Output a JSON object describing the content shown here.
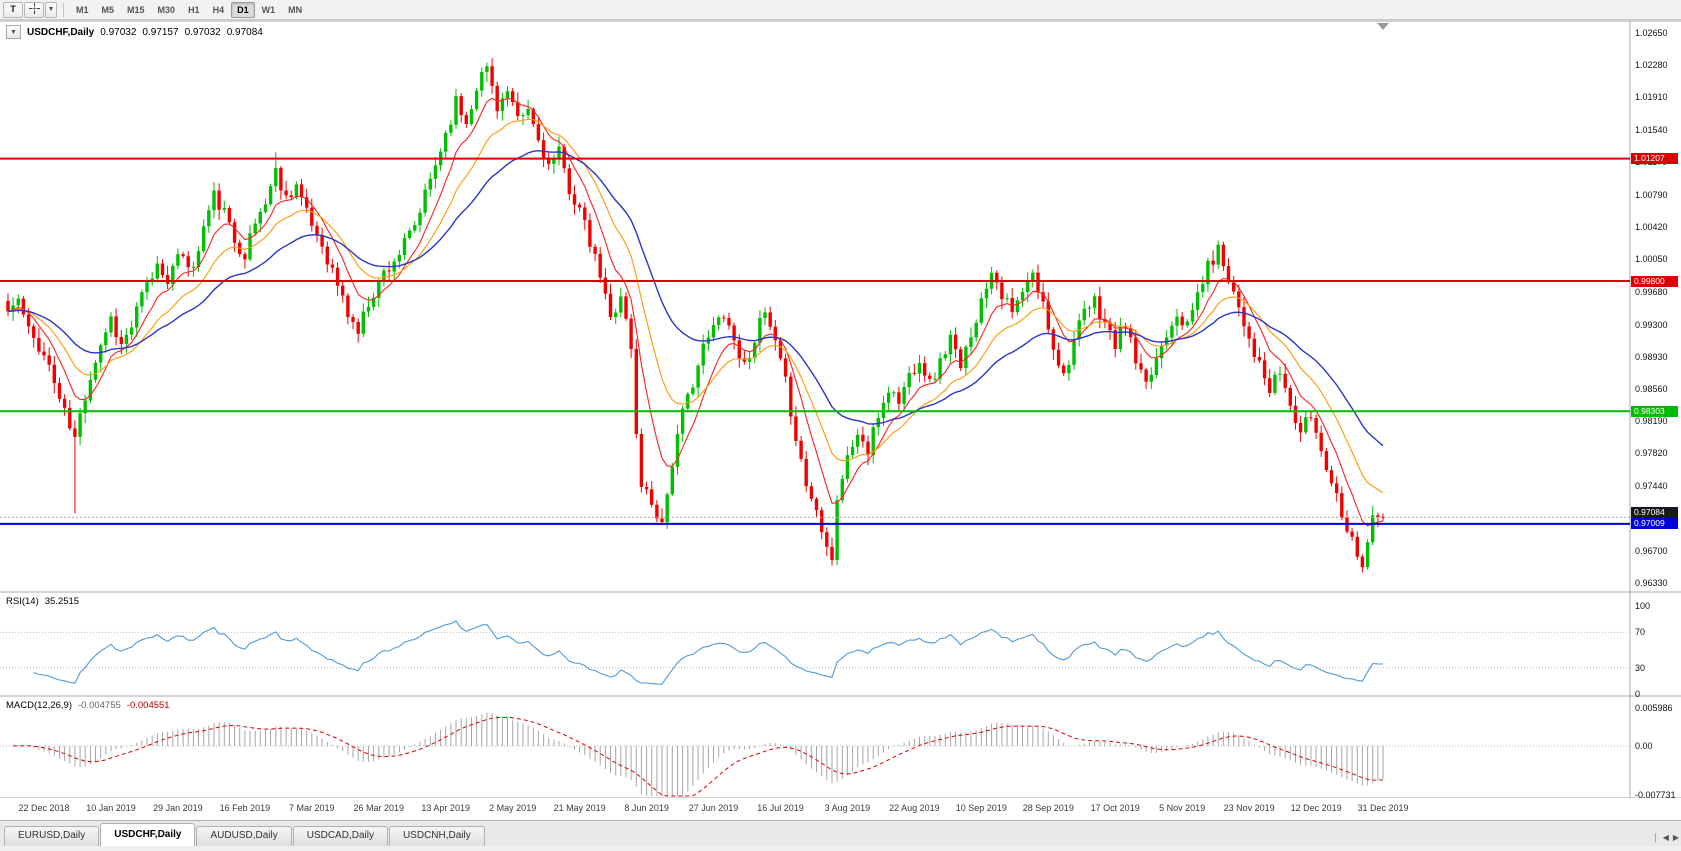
{
  "toolbar": {
    "text_tool_label": "T",
    "timeframes": [
      "M1",
      "M5",
      "M15",
      "M30",
      "H1",
      "H4",
      "D1",
      "W1",
      "MN"
    ],
    "active_timeframe": "D1"
  },
  "chart": {
    "title": {
      "symbol": "USDCHF,Daily",
      "open": "0.97032",
      "high": "0.97157",
      "low": "0.97032",
      "close": "0.97084"
    },
    "price_axis_labels": [
      "1.02650",
      "1.02280",
      "1.01910",
      "1.01540",
      "1.01170",
      "1.00790",
      "1.00420",
      "1.00050",
      "0.99680",
      "0.99300",
      "0.98930",
      "0.98560",
      "0.98190",
      "0.97820",
      "0.97440",
      "0.96700",
      "0.96330"
    ],
    "hlines": [
      {
        "label": "1.01207",
        "value": 1.01207,
        "color": "#dd0000"
      },
      {
        "label": "0.99800",
        "value": 0.998,
        "color": "#dd0000"
      },
      {
        "label": "0.98303",
        "value": 0.98303,
        "color": "#00bb00"
      },
      {
        "label": "0.97009",
        "value": 0.97009,
        "color": "#0000dd"
      }
    ],
    "bid_line": {
      "label": "0.97084",
      "value": 0.97084,
      "box_color": "#15181f",
      "line_color": "#a8a8a8"
    }
  },
  "rsi_panel": {
    "name": "RSI(14)",
    "value": "35.2515",
    "period": 14,
    "axis_labels": [
      "100",
      "70",
      "30",
      "0"
    ],
    "levels": [
      100,
      70,
      30,
      0
    ],
    "guide_levels": [
      70,
      30
    ],
    "line_color": "#4f9bd8"
  },
  "macd_panel": {
    "name": "MACD(12,26,9)",
    "value_main": "-0.004755",
    "value_signal": "-0.004551",
    "params": [
      12,
      26,
      9
    ],
    "axis_labels": [
      "0.005986",
      "0.00",
      "-0.007731"
    ],
    "histogram_color": "#a6a6a6",
    "signal_color": "#dd0000"
  },
  "tabs": {
    "items": [
      {
        "label": "EURUSD,Daily",
        "active": false
      },
      {
        "label": "USDCHF,Daily",
        "active": true
      },
      {
        "label": "AUDUSD,Daily",
        "active": false
      },
      {
        "label": "USDCAD,Daily",
        "active": false
      },
      {
        "label": "USDCNH,Daily",
        "active": false
      }
    ]
  },
  "chart_data": {
    "type": "candlestick",
    "symbol": "USDCHF",
    "timeframe": "Daily",
    "bar_count": 268,
    "price_range": {
      "top": 1.0265,
      "bottom": 0.9633
    },
    "last_close": 0.97084,
    "time_axis_labels": [
      "22 Dec 2018",
      "10 Jan 2019",
      "29 Jan 2019",
      "16 Feb 2019",
      "7 Mar 2019",
      "26 Mar 2019",
      "13 Apr 2019",
      "2 May 2019",
      "21 May 2019",
      "8 Jun 2019",
      "27 Jun 2019",
      "16 Jul 2019",
      "3 Aug 2019",
      "22 Aug 2019",
      "10 Sep 2019",
      "28 Sep 2019",
      "17 Oct 2019",
      "5 Nov 2019",
      "23 Nov 2019",
      "12 Dec 2019",
      "31 Dec 2019"
    ],
    "first_label_bar": 7,
    "time_labels_every_n_bars": 13,
    "close_waypoints": [
      [
        0,
        0.9945
      ],
      [
        2,
        0.9958
      ],
      [
        4,
        0.9922
      ],
      [
        6,
        0.9906
      ],
      [
        8,
        0.9882
      ],
      [
        10,
        0.9845
      ],
      [
        12,
        0.9812
      ],
      [
        13,
        0.9798
      ],
      [
        14,
        0.9825
      ],
      [
        16,
        0.9872
      ],
      [
        18,
        0.9908
      ],
      [
        20,
        0.9938
      ],
      [
        22,
        0.9906
      ],
      [
        24,
        0.9928
      ],
      [
        26,
        0.9962
      ],
      [
        29,
        0.9998
      ],
      [
        31,
        0.9984
      ],
      [
        34,
        1.0012
      ],
      [
        36,
        0.9992
      ],
      [
        38,
        1.0042
      ],
      [
        40,
        1.0078
      ],
      [
        42,
        1.0058
      ],
      [
        44,
        1.0026
      ],
      [
        46,
        1.0012
      ],
      [
        48,
        1.0046
      ],
      [
        50,
        1.0072
      ],
      [
        52,
        1.0106
      ],
      [
        54,
        1.0076
      ],
      [
        56,
        1.0092
      ],
      [
        58,
        1.0056
      ],
      [
        61,
        1.0022
      ],
      [
        64,
        0.9976
      ],
      [
        66,
        0.9942
      ],
      [
        68,
        0.9922
      ],
      [
        70,
        0.9956
      ],
      [
        73,
        0.999
      ],
      [
        76,
        1.0012
      ],
      [
        79,
        1.0042
      ],
      [
        82,
        1.0096
      ],
      [
        85,
        1.015
      ],
      [
        87,
        1.0186
      ],
      [
        89,
        1.0162
      ],
      [
        91,
        1.0206
      ],
      [
        93,
        1.0226
      ],
      [
        95,
        1.0182
      ],
      [
        97,
        1.0196
      ],
      [
        99,
        1.0162
      ],
      [
        101,
        1.0176
      ],
      [
        103,
        1.0142
      ],
      [
        105,
        1.0112
      ],
      [
        107,
        1.0126
      ],
      [
        109,
        1.0086
      ],
      [
        111,
        1.0062
      ],
      [
        113,
        1.0022
      ],
      [
        115,
        0.9986
      ],
      [
        117,
        0.9936
      ],
      [
        119,
        0.9966
      ],
      [
        121,
        0.9902
      ],
      [
        122,
        0.9802
      ],
      [
        123,
        0.9748
      ],
      [
        125,
        0.9726
      ],
      [
        127,
        0.9702
      ],
      [
        129,
        0.9772
      ],
      [
        131,
        0.9826
      ],
      [
        133,
        0.9866
      ],
      [
        135,
        0.9902
      ],
      [
        137,
        0.9926
      ],
      [
        139,
        0.9946
      ],
      [
        141,
        0.9912
      ],
      [
        143,
        0.9882
      ],
      [
        145,
        0.9916
      ],
      [
        147,
        0.9942
      ],
      [
        149,
        0.9906
      ],
      [
        151,
        0.9862
      ],
      [
        153,
        0.9802
      ],
      [
        155,
        0.9746
      ],
      [
        157,
        0.9716
      ],
      [
        159,
        0.9682
      ],
      [
        160,
        0.966
      ],
      [
        161,
        0.9732
      ],
      [
        163,
        0.9776
      ],
      [
        165,
        0.9806
      ],
      [
        167,
        0.9782
      ],
      [
        169,
        0.9826
      ],
      [
        171,
        0.9856
      ],
      [
        173,
        0.9842
      ],
      [
        175,
        0.9872
      ],
      [
        177,
        0.9892
      ],
      [
        179,
        0.9862
      ],
      [
        181,
        0.9886
      ],
      [
        183,
        0.9916
      ],
      [
        185,
        0.9876
      ],
      [
        187,
        0.9922
      ],
      [
        189,
        0.9956
      ],
      [
        191,
        0.9996
      ],
      [
        193,
        0.9966
      ],
      [
        195,
        0.9942
      ],
      [
        197,
        0.9966
      ],
      [
        199,
        0.9986
      ],
      [
        201,
        0.9952
      ],
      [
        203,
        0.9906
      ],
      [
        205,
        0.9872
      ],
      [
        207,
        0.9912
      ],
      [
        209,
        0.9942
      ],
      [
        211,
        0.9956
      ],
      [
        213,
        0.9932
      ],
      [
        215,
        0.9906
      ],
      [
        217,
        0.9932
      ],
      [
        219,
        0.9886
      ],
      [
        221,
        0.9856
      ],
      [
        223,
        0.9892
      ],
      [
        225,
        0.9922
      ],
      [
        227,
        0.9946
      ],
      [
        229,
        0.9926
      ],
      [
        231,
        0.9966
      ],
      [
        233,
        0.9996
      ],
      [
        235,
        1.0016
      ],
      [
        237,
        0.9986
      ],
      [
        239,
        0.9952
      ],
      [
        241,
        0.9916
      ],
      [
        243,
        0.9882
      ],
      [
        245,
        0.9852
      ],
      [
        247,
        0.9876
      ],
      [
        249,
        0.9836
      ],
      [
        251,
        0.9806
      ],
      [
        253,
        0.9826
      ],
      [
        255,
        0.9786
      ],
      [
        257,
        0.9752
      ],
      [
        259,
        0.9716
      ],
      [
        261,
        0.9682
      ],
      [
        263,
        0.9656
      ],
      [
        265,
        0.9706
      ],
      [
        267,
        0.97084
      ]
    ],
    "wick_overrides": [
      {
        "bar": 13,
        "low": 0.9713
      },
      {
        "bar": 52,
        "high": 1.0128
      },
      {
        "bar": 93,
        "high": 1.0231
      },
      {
        "bar": 160,
        "low": 0.9653
      },
      {
        "bar": 263,
        "low": 0.9645
      }
    ],
    "candle_up_color": "#00be00",
    "candle_down_color": "#f20000",
    "moving_averages": [
      {
        "period": 8,
        "color": "#ff2020"
      },
      {
        "period": 17,
        "color": "#ff9900"
      },
      {
        "period": 34,
        "color": "#2b35c8"
      }
    ],
    "indicators": [
      {
        "name": "RSI",
        "period": 14,
        "current": 35.2515
      },
      {
        "name": "MACD",
        "fast": 12,
        "slow": 26,
        "signal": 9,
        "current_main": -0.004755,
        "current_signal": -0.004551
      }
    ]
  }
}
